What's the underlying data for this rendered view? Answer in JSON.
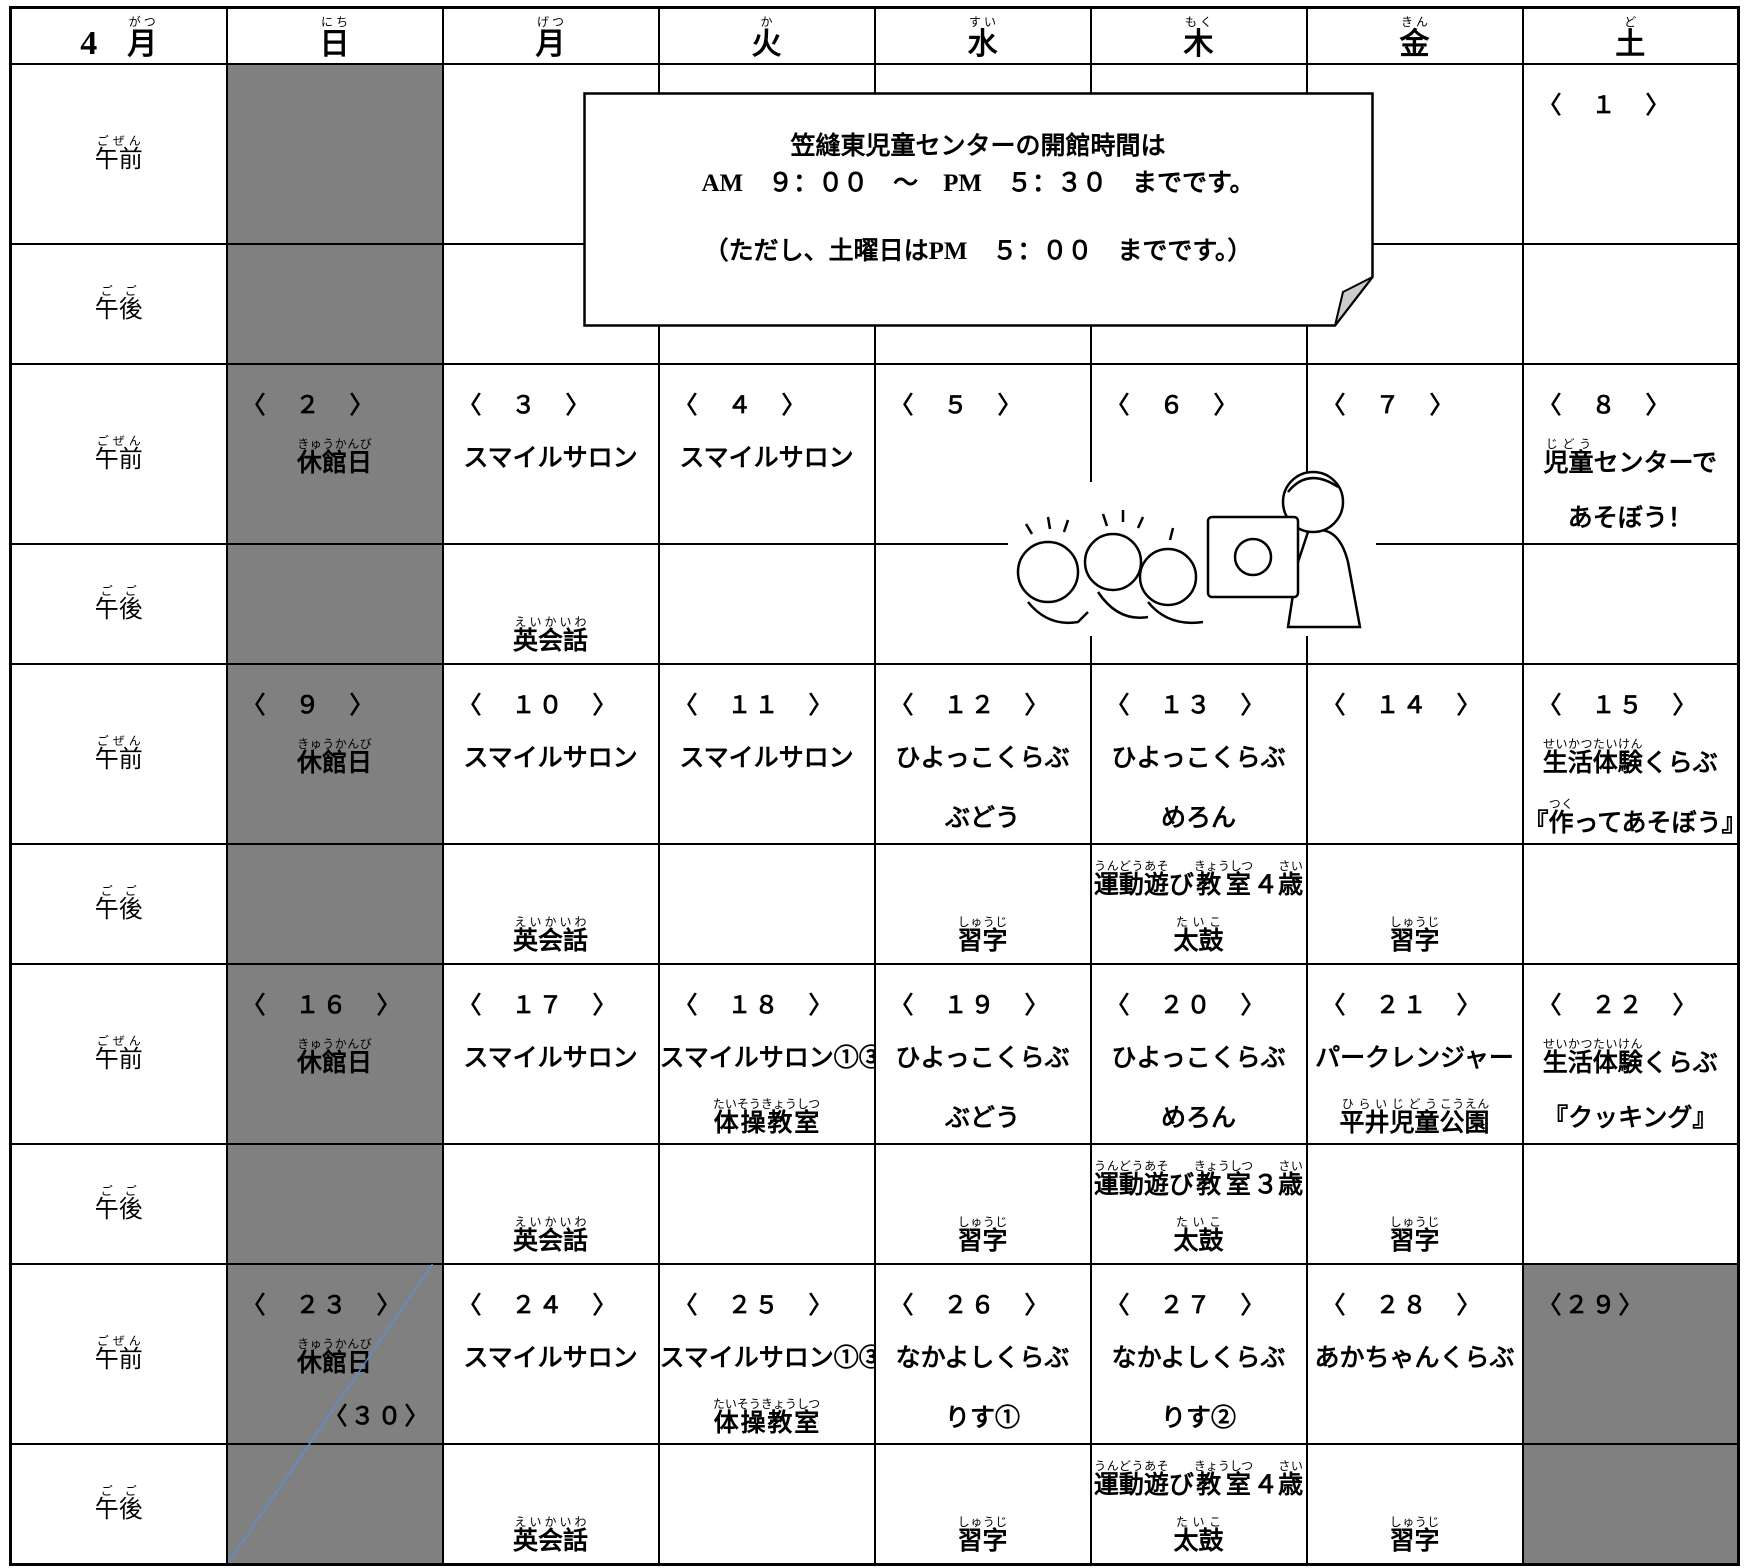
{
  "header": {
    "month": "4",
    "month_label": {
      "b": "月",
      "r": "がつ"
    },
    "days": [
      {
        "b": "日",
        "r": "にち"
      },
      {
        "b": "月",
        "r": "げつ"
      },
      {
        "b": "火",
        "r": "か"
      },
      {
        "b": "水",
        "r": "すい"
      },
      {
        "b": "木",
        "r": "もく"
      },
      {
        "b": "金",
        "r": "きん"
      },
      {
        "b": "土",
        "r": "ど"
      }
    ]
  },
  "periods": {
    "am": {
      "b": "午前",
      "r": "ごぜん"
    },
    "pm": {
      "b": "午後",
      "r": "ごご"
    }
  },
  "notice": {
    "line1": "笠縫東児童センターの開館時間は",
    "line2": "AM　９：００　～　PM　５：３０　までです。",
    "line3": "（ただし、土曜日はPM　５：００　までです。）"
  },
  "weeks": [
    {
      "days": [
        {},
        {},
        {},
        {},
        {},
        {},
        {
          "date": "〈　１　〉"
        }
      ]
    },
    {
      "days": [
        {
          "date": "〈　２　〉",
          "am": [
            [
              {
                "b": "休館日",
                "r": "きゅうかんび"
              }
            ]
          ]
        },
        {
          "date": "〈　３　〉",
          "am": [
            [
              "スマイルサロン"
            ]
          ],
          "pm": [
            [
              {
                "b": "英会話",
                "r": "えいかいわ"
              }
            ]
          ]
        },
        {
          "date": "〈　４　〉",
          "am": [
            [
              "スマイルサロン"
            ]
          ]
        },
        {
          "date": "〈　５　〉"
        },
        {
          "date": "〈　６　〉"
        },
        {
          "date": "〈　７　〉"
        },
        {
          "date": "〈　８　〉",
          "am": [
            [
              {
                "b": "児童",
                "r": "じどう"
              },
              "センターで"
            ],
            [
              "あそぼう！"
            ]
          ]
        }
      ]
    },
    {
      "days": [
        {
          "date": "〈　９　〉",
          "am": [
            [
              {
                "b": "休館日",
                "r": "きゅうかんび"
              }
            ]
          ]
        },
        {
          "date": "〈　１０　〉",
          "am": [
            [
              "スマイルサロン"
            ]
          ],
          "pm": [
            [
              {
                "b": "英会話",
                "r": "えいかいわ"
              }
            ]
          ]
        },
        {
          "date": "〈　１１　〉",
          "am": [
            [
              "スマイルサロン"
            ]
          ]
        },
        {
          "date": "〈　１２　〉",
          "am": [
            [
              "ひよっこくらぶ"
            ],
            [
              "ぶどう"
            ]
          ],
          "pm": [
            [
              {
                "b": "習字",
                "r": "しゅうじ"
              }
            ]
          ]
        },
        {
          "date": "〈　１３　〉",
          "am": [
            [
              "ひよっこくらぶ"
            ],
            [
              "めろん"
            ]
          ],
          "pm": [
            [
              {
                "b": "運動",
                "r": "うんどう"
              },
              {
                "b": "遊",
                "r": "あそ"
              },
              "び",
              {
                "b": "教室",
                "r": "きょうしつ"
              },
              "４",
              {
                "b": "歳",
                "r": "さい"
              }
            ],
            [
              {
                "b": "太鼓",
                "r": "たいこ"
              }
            ]
          ]
        },
        {
          "date": "〈　１４　〉",
          "pm": [
            [
              {
                "b": "習字",
                "r": "しゅうじ"
              }
            ]
          ]
        },
        {
          "date": "〈　１５　〉",
          "am": [
            [
              {
                "b": "生活",
                "r": "せいかつ"
              },
              {
                "b": "体験",
                "r": "たいけん"
              },
              "くらぶ"
            ],
            [
              "『",
              {
                "b": "作",
                "r": "つく"
              },
              "ってあそぼう』"
            ]
          ]
        }
      ]
    },
    {
      "days": [
        {
          "date": "〈　１６　〉",
          "am": [
            [
              {
                "b": "休館日",
                "r": "きゅうかんび"
              }
            ]
          ]
        },
        {
          "date": "〈　１７　〉",
          "am": [
            [
              "スマイルサロン"
            ]
          ],
          "pm": [
            [
              {
                "b": "英会話",
                "r": "えいかいわ"
              }
            ]
          ]
        },
        {
          "date": "〈　１８　〉",
          "am": [
            [
              "スマイルサロン①③"
            ],
            [
              {
                "b": "体操教室",
                "r": "たいそうきょうしつ"
              }
            ]
          ]
        },
        {
          "date": "〈　１９　〉",
          "am": [
            [
              "ひよっこくらぶ"
            ],
            [
              "ぶどう"
            ]
          ],
          "pm": [
            [
              {
                "b": "習字",
                "r": "しゅうじ"
              }
            ]
          ]
        },
        {
          "date": "〈　２０　〉",
          "am": [
            [
              "ひよっこくらぶ"
            ],
            [
              "めろん"
            ]
          ],
          "pm": [
            [
              {
                "b": "運動",
                "r": "うんどう"
              },
              {
                "b": "遊",
                "r": "あそ"
              },
              "び",
              {
                "b": "教室",
                "r": "きょうしつ"
              },
              "３",
              {
                "b": "歳",
                "r": "さい"
              }
            ],
            [
              {
                "b": "太鼓",
                "r": "たいこ"
              }
            ]
          ]
        },
        {
          "date": "〈　２１　〉",
          "am": [
            [
              "パークレンジャー"
            ],
            [
              {
                "b": "平井",
                "r": "ひらい"
              },
              {
                "b": "児童",
                "r": "じどう"
              },
              {
                "b": "公園",
                "r": "こうえん"
              }
            ]
          ],
          "pm": [
            [
              {
                "b": "習字",
                "r": "しゅうじ"
              }
            ]
          ]
        },
        {
          "date": "〈　２２　〉",
          "am": [
            [
              {
                "b": "生活",
                "r": "せいかつ"
              },
              {
                "b": "体験",
                "r": "たいけん"
              },
              "くらぶ"
            ],
            [
              "『クッキング』"
            ]
          ]
        }
      ]
    },
    {
      "days": [
        {
          "date": "〈　２３　〉",
          "am": [
            [
              {
                "b": "休館日",
                "r": "きゅうかんび"
              }
            ]
          ],
          "extra": "〈３０〉"
        },
        {
          "date": "〈　２４　〉",
          "am": [
            [
              "スマイルサロン"
            ]
          ],
          "pm": [
            [
              {
                "b": "英会話",
                "r": "えいかいわ"
              }
            ]
          ]
        },
        {
          "date": "〈　２５　〉",
          "am": [
            [
              "スマイルサロン①③"
            ],
            [
              {
                "b": "体操教室",
                "r": "たいそうきょうしつ"
              }
            ]
          ]
        },
        {
          "date": "〈　２６　〉",
          "am": [
            [
              "なかよしくらぶ"
            ],
            [
              "りす①"
            ]
          ],
          "pm": [
            [
              {
                "b": "習字",
                "r": "しゅうじ"
              }
            ]
          ]
        },
        {
          "date": "〈　２７　〉",
          "am": [
            [
              "なかよしくらぶ"
            ],
            [
              "りす②"
            ]
          ],
          "pm": [
            [
              {
                "b": "運動",
                "r": "うんどう"
              },
              {
                "b": "遊",
                "r": "あそ"
              },
              "び",
              {
                "b": "教室",
                "r": "きょうしつ"
              },
              "４",
              {
                "b": "歳",
                "r": "さい"
              }
            ],
            [
              {
                "b": "太鼓",
                "r": "たいこ"
              }
            ]
          ]
        },
        {
          "date": "〈　２８　〉",
          "am": [
            [
              "あかちゃんくらぶ"
            ]
          ],
          "pm": [
            [
              {
                "b": "習字",
                "r": "しゅうじ"
              }
            ]
          ]
        },
        {
          "date": "〈２９〉"
        }
      ]
    }
  ]
}
